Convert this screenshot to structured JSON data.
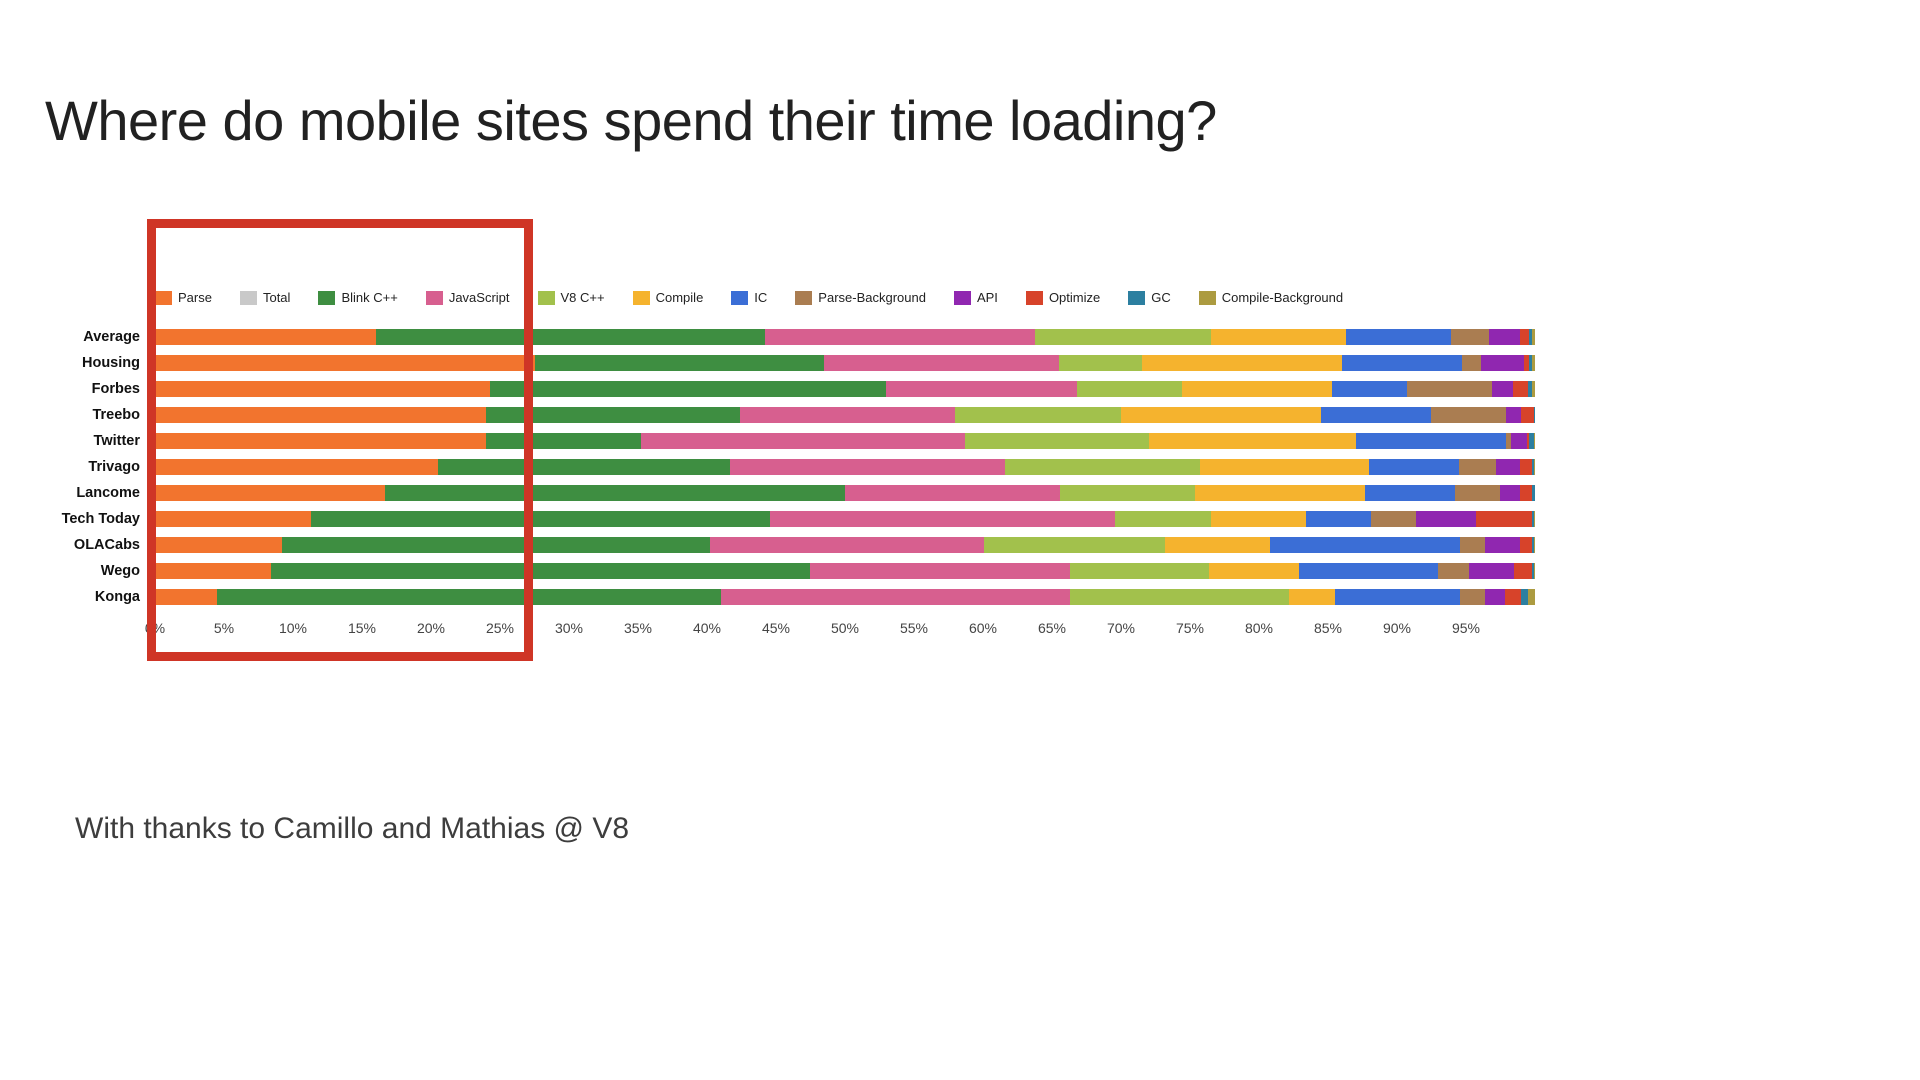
{
  "slide": {
    "title": "Where do mobile sites spend their time loading?",
    "credit": "With thanks to Camillo and Mathias @ V8"
  },
  "annotation": {
    "highlight_box_color": "#cf3526"
  },
  "chart_data": {
    "type": "bar",
    "orientation": "horizontal",
    "stacked": true,
    "unit": "%",
    "xlim": [
      0,
      100
    ],
    "grid": false,
    "legend_position": "top",
    "categories": [
      "Average",
      "Housing",
      "Forbes",
      "Treebo",
      "Twitter",
      "Trivago",
      "Lancome",
      "Tech Today",
      "OLACabs",
      "Wego",
      "Konga"
    ],
    "legend": [
      {
        "label": "Parse",
        "color": "#f2742e"
      },
      {
        "label": "Total",
        "color": "#c9c9c9"
      },
      {
        "label": "Blink C++",
        "color": "#3e8e41"
      },
      {
        "label": "JavaScript",
        "color": "#d75f8f"
      },
      {
        "label": "V8 C++",
        "color": "#a2c14c"
      },
      {
        "label": "Compile",
        "color": "#f5b32e"
      },
      {
        "label": "IC",
        "color": "#3b6ed6"
      },
      {
        "label": "Parse-Background",
        "color": "#aa7d51"
      },
      {
        "label": "API",
        "color": "#9027b0"
      },
      {
        "label": "Optimize",
        "color": "#d7432a"
      },
      {
        "label": "GC",
        "color": "#2c7fa0"
      },
      {
        "label": "Compile-Background",
        "color": "#ac9b40"
      }
    ],
    "series": [
      {
        "name": "Parse",
        "color": "#f2742e",
        "values": [
          16.0,
          27.5,
          24.3,
          24.0,
          24.0,
          20.5,
          16.7,
          11.3,
          9.2,
          8.4,
          4.5
        ]
      },
      {
        "name": "Blink C++",
        "color": "#3e8e41",
        "values": [
          28.2,
          21.0,
          28.7,
          18.4,
          11.2,
          21.2,
          33.3,
          33.3,
          31.0,
          39.1,
          36.5
        ]
      },
      {
        "name": "JavaScript",
        "color": "#d75f8f",
        "values": [
          19.6,
          17.0,
          13.8,
          15.6,
          23.5,
          19.9,
          15.6,
          25.0,
          19.9,
          18.8,
          25.3
        ]
      },
      {
        "name": "V8 C++",
        "color": "#a2c14c",
        "values": [
          12.7,
          6.0,
          7.6,
          12.0,
          13.3,
          14.1,
          9.8,
          6.9,
          13.1,
          10.1,
          15.9
        ]
      },
      {
        "name": "Compile",
        "color": "#f5b32e",
        "values": [
          9.8,
          14.5,
          10.9,
          14.5,
          15.0,
          12.3,
          12.3,
          6.9,
          7.6,
          6.5,
          3.3
        ]
      },
      {
        "name": "IC",
        "color": "#3b6ed6",
        "values": [
          7.6,
          8.7,
          5.4,
          8.0,
          10.9,
          6.5,
          6.5,
          4.7,
          13.8,
          10.1,
          9.1
        ]
      },
      {
        "name": "Parse-Background",
        "color": "#aa7d51",
        "values": [
          2.8,
          1.4,
          6.2,
          5.4,
          0.4,
          2.7,
          3.3,
          3.3,
          1.8,
          2.2,
          1.8
        ]
      },
      {
        "name": "API",
        "color": "#9027b0",
        "values": [
          2.2,
          3.1,
          1.5,
          1.1,
          1.1,
          1.7,
          1.4,
          4.3,
          2.5,
          3.3,
          1.4
        ]
      },
      {
        "name": "Optimize",
        "color": "#d7432a",
        "values": [
          0.7,
          0.4,
          1.1,
          0.9,
          0.2,
          0.9,
          0.9,
          4.1,
          0.9,
          1.3,
          1.2
        ]
      },
      {
        "name": "GC",
        "color": "#2c7fa0",
        "values": [
          0.2,
          0.2,
          0.3,
          0.1,
          0.3,
          0.1,
          0.2,
          0.1,
          0.1,
          0.1,
          0.5
        ]
      },
      {
        "name": "Compile-Background",
        "color": "#ac9b40",
        "values": [
          0.2,
          0.2,
          0.2,
          0.0,
          0.1,
          0.1,
          0.0,
          0.1,
          0.1,
          0.1,
          0.5
        ]
      }
    ],
    "x_ticks": [
      "0%",
      "5%",
      "10%",
      "15%",
      "20%",
      "25%",
      "30%",
      "35%",
      "40%",
      "45%",
      "50%",
      "55%",
      "60%",
      "65%",
      "70%",
      "75%",
      "80%",
      "85%",
      "90%",
      "95%"
    ]
  }
}
